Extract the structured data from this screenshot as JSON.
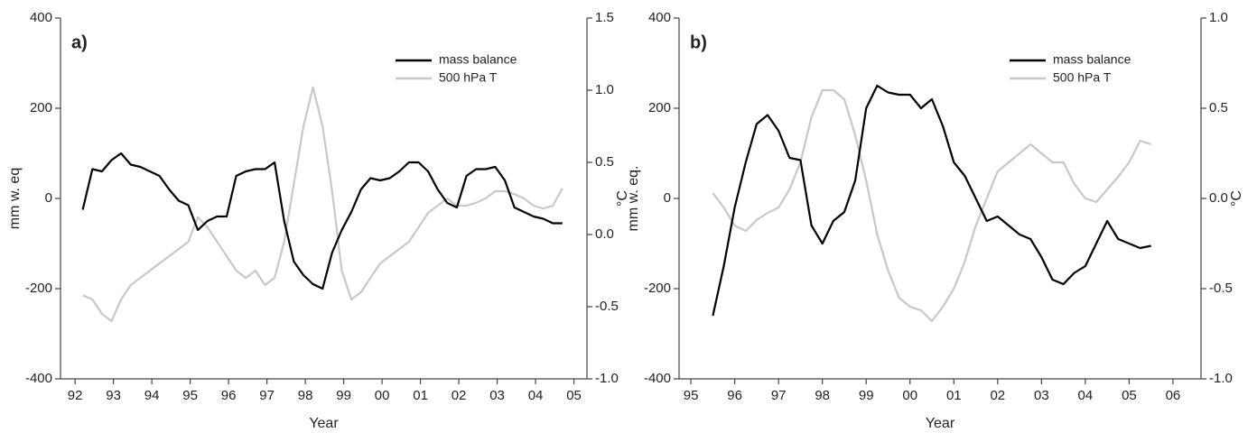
{
  "chart_data": [
    {
      "type": "line",
      "panel_label": "a)",
      "xlabel": "Year",
      "ylabel": "mm w. eq",
      "y2label": "°C",
      "x": [
        1992.2,
        1992.45,
        1992.7,
        1992.95,
        1993.2,
        1993.45,
        1993.7,
        1993.95,
        1994.2,
        1994.45,
        1994.7,
        1994.95,
        1995.2,
        1995.45,
        1995.7,
        1995.95,
        1996.2,
        1996.45,
        1996.7,
        1996.95,
        1997.2,
        1997.45,
        1997.7,
        1997.95,
        1998.2,
        1998.45,
        1998.7,
        1998.95,
        1999.2,
        1999.45,
        1999.7,
        1999.95,
        2000.2,
        2000.45,
        2000.7,
        2000.95,
        2001.2,
        2001.45,
        2001.7,
        2001.95,
        2002.2,
        2002.45,
        2002.7,
        2002.95,
        2003.2,
        2003.45,
        2003.7,
        2003.95,
        2004.2,
        2004.45,
        2004.7
      ],
      "series": [
        {
          "name": "mass balance",
          "color": "#000000",
          "values": [
            -25,
            65,
            60,
            85,
            100,
            75,
            70,
            60,
            50,
            20,
            -5,
            -15,
            -70,
            -50,
            -40,
            -40,
            50,
            60,
            65,
            65,
            80,
            -50,
            -140,
            -170,
            -190,
            -200,
            -120,
            -70,
            -30,
            20,
            45,
            40,
            45,
            60,
            80,
            80,
            60,
            20,
            -10,
            -20,
            50,
            65,
            65,
            70,
            40,
            -20,
            -30,
            -40,
            -45,
            -55,
            -55
          ]
        },
        {
          "name": "500 hPa T",
          "color": "#c8c8c8",
          "axis": "y2",
          "values": [
            -0.42,
            -0.45,
            -0.55,
            -0.6,
            -0.45,
            -0.35,
            -0.3,
            -0.25,
            -0.2,
            -0.15,
            -0.1,
            -0.05,
            0.12,
            0.05,
            -0.05,
            -0.15,
            -0.25,
            -0.3,
            -0.25,
            -0.35,
            -0.3,
            -0.05,
            0.35,
            0.75,
            1.02,
            0.75,
            0.3,
            -0.25,
            -0.45,
            -0.4,
            -0.3,
            -0.2,
            -0.15,
            -0.1,
            -0.05,
            0.05,
            0.15,
            0.2,
            0.25,
            0.2,
            0.2,
            0.22,
            0.25,
            0.3,
            0.3,
            0.28,
            0.25,
            0.2,
            0.18,
            0.2,
            0.32
          ]
        }
      ],
      "xlim": [
        1991.62,
        2005.34
      ],
      "xticks": [
        {
          "value": 1992,
          "label": "92"
        },
        {
          "value": 1993,
          "label": "93"
        },
        {
          "value": 1994,
          "label": "94"
        },
        {
          "value": 1995,
          "label": "95"
        },
        {
          "value": 1996,
          "label": "96"
        },
        {
          "value": 1997,
          "label": "97"
        },
        {
          "value": 1998,
          "label": "98"
        },
        {
          "value": 1999,
          "label": "99"
        },
        {
          "value": 2000,
          "label": "00"
        },
        {
          "value": 2001,
          "label": "01"
        },
        {
          "value": 2002,
          "label": "02"
        },
        {
          "value": 2003,
          "label": "03"
        },
        {
          "value": 2004,
          "label": "04"
        },
        {
          "value": 2005,
          "label": "05"
        }
      ],
      "ylim": [
        -400,
        400
      ],
      "yticks": [
        -400,
        -200,
        0,
        200,
        400
      ],
      "y2lim": [
        -1.0,
        1.5
      ],
      "y2ticks": [
        {
          "value": -1,
          "label": "-1.0"
        },
        -0.5,
        {
          "value": 0,
          "label": "0.0"
        },
        0.5,
        {
          "value": 1,
          "label": "1.0"
        },
        1.5
      ],
      "legend": "upper right"
    },
    {
      "type": "line",
      "panel_label": "b)",
      "xlabel": "Year",
      "ylabel": "mm w. eq.",
      "y2label": "°C",
      "x": [
        1995.5,
        1995.75,
        1996.0,
        1996.25,
        1996.5,
        1996.75,
        1997.0,
        1997.25,
        1997.5,
        1997.75,
        1998.0,
        1998.25,
        1998.5,
        1998.75,
        1999.0,
        1999.25,
        1999.5,
        1999.75,
        2000.0,
        2000.25,
        2000.5,
        2000.75,
        2001.0,
        2001.25,
        2001.5,
        2001.75,
        2002.0,
        2002.25,
        2002.5,
        2002.75,
        2003.0,
        2003.25,
        2003.5,
        2003.75,
        2004.0,
        2004.25,
        2004.5,
        2004.75,
        2005.0,
        2005.25,
        2005.5
      ],
      "series": [
        {
          "name": "mass balance",
          "color": "#000000",
          "values": [
            -260,
            -150,
            -20,
            80,
            165,
            185,
            150,
            90,
            85,
            -60,
            -100,
            -50,
            -30,
            40,
            200,
            250,
            235,
            230,
            230,
            200,
            220,
            160,
            80,
            50,
            0,
            -50,
            -40,
            -60,
            -80,
            -90,
            -130,
            -180,
            -190,
            -165,
            -150,
            -100,
            -50,
            -90,
            -100,
            -110,
            -105
          ]
        },
        {
          "name": "500 hPa T",
          "color": "#c8c8c8",
          "axis": "y2",
          "values": [
            0.03,
            -0.05,
            -0.15,
            -0.18,
            -0.12,
            -0.08,
            -0.05,
            0.05,
            0.2,
            0.45,
            0.6,
            0.6,
            0.55,
            0.35,
            0.1,
            -0.2,
            -0.4,
            -0.55,
            -0.6,
            -0.62,
            -0.68,
            -0.6,
            -0.5,
            -0.35,
            -0.15,
            0.0,
            0.15,
            0.2,
            0.25,
            0.3,
            0.25,
            0.2,
            0.2,
            0.08,
            0.0,
            -0.02,
            0.05,
            0.12,
            0.2,
            0.32,
            0.3
          ]
        }
      ],
      "xlim": [
        1994.73,
        2006.64
      ],
      "xticks": [
        {
          "value": 1995,
          "label": "95"
        },
        {
          "value": 1996,
          "label": "96"
        },
        {
          "value": 1997,
          "label": "97"
        },
        {
          "value": 1998,
          "label": "98"
        },
        {
          "value": 1999,
          "label": "99"
        },
        {
          "value": 2000,
          "label": "00"
        },
        {
          "value": 2001,
          "label": "01"
        },
        {
          "value": 2002,
          "label": "02"
        },
        {
          "value": 2003,
          "label": "03"
        },
        {
          "value": 2004,
          "label": "04"
        },
        {
          "value": 2005,
          "label": "05"
        },
        {
          "value": 2006,
          "label": "06"
        }
      ],
      "ylim": [
        -400,
        400
      ],
      "yticks": [
        -400,
        -200,
        0,
        200,
        400
      ],
      "y2lim": [
        -1.0,
        1.0
      ],
      "y2ticks": [
        {
          "value": -1,
          "label": "-1.0"
        },
        -0.5,
        {
          "value": 0,
          "label": "0.0"
        },
        0.5,
        {
          "value": 1,
          "label": "1.0"
        }
      ],
      "legend": "upper right"
    }
  ]
}
